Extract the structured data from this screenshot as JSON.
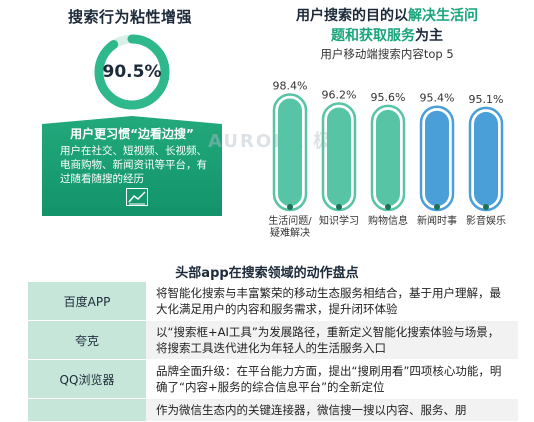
{
  "left_panel": {
    "title": "搜索行为粘性增强",
    "ring_value": "90.5%",
    "ring_fraction": 0.905,
    "card_title": "用户更习惯“边看边搜”",
    "card_body": "用户在社交、短视频、长视频、电商购物、新闻资讯等平台，有过随看随搜的经历",
    "card_icon": "chart-icon"
  },
  "right_panel": {
    "title_line1_prefix": "用户搜索的目的以",
    "title_line1_accent": "解决生活问",
    "title_line2_accent": "题和获取服务",
    "title_line2_suffix": "为主",
    "chart_subtitle": "用户移动端搜索内容top 5"
  },
  "watermark": "AURORA 极光",
  "chart_data": {
    "type": "bar",
    "title": "用户移动端搜索内容top 5",
    "categories": [
      "生活问题/疑难解决",
      "知识学习",
      "购物信息",
      "新闻时事",
      "影音娱乐"
    ],
    "category_lines": [
      [
        "生活问题/",
        "疑难解决"
      ],
      [
        "知识学习"
      ],
      [
        "购物信息"
      ],
      [
        "新闻时事"
      ],
      [
        "影音娱乐"
      ]
    ],
    "values": [
      98.4,
      96.2,
      95.6,
      95.4,
      95.1
    ],
    "value_labels": [
      "98.4%",
      "96.2%",
      "95.6%",
      "95.4%",
      "95.1%"
    ],
    "ylim": [
      0,
      100
    ],
    "colors": [
      "#57c4a6",
      "#57c4a6",
      "#57c4a6",
      "#4a9fd8",
      "#4a9fd8"
    ],
    "grid": false
  },
  "table": {
    "title": "头部app在搜索领域的动作盘点",
    "rows": [
      {
        "name": "百度APP",
        "desc": "将智能化搜索与丰富繁荣的移动生态服务相结合，基于用户理解，最大化满足用户的内容和服务需求，提升闭环体验"
      },
      {
        "name": "夸克",
        "desc": "以“搜索框+AI工具”为发展路径，重新定义智能化搜索体验与场景，将搜索工具迭代进化为年轻人的生活服务入口"
      },
      {
        "name": "QQ浏览器",
        "desc": "品牌全面升级：在平台能力方面，提出“搜刷用看”四项核心功能，明确了“内容+服务的综合信息平台”的全新定位"
      },
      {
        "name": "",
        "desc": "作为微信生态内的关键连接器，微信搜一搜以内容、服务、朋"
      }
    ]
  }
}
